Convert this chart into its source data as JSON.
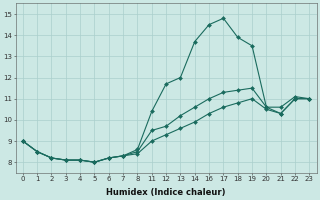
{
  "xlabel": "Humidex (Indice chaleur)",
  "bg_color": "#cce8e4",
  "grid_color": "#aacfcc",
  "line_color": "#1a6b5e",
  "line_width": 0.8,
  "marker": "D",
  "marker_size": 2.0,
  "xtick_labels": [
    "0",
    "1",
    "2",
    "3",
    "4",
    "5",
    "6",
    "7",
    "8",
    "11",
    "12",
    "13",
    "14",
    "16",
    "17",
    "18",
    "19",
    "20",
    "21",
    "22",
    "23"
  ],
  "series1_y": [
    9.0,
    8.5,
    8.2,
    8.1,
    8.1,
    8.0,
    8.2,
    8.3,
    8.6,
    10.4,
    11.7,
    12.0,
    13.7,
    14.5,
    14.8,
    13.9,
    13.5,
    10.6,
    10.6,
    11.1,
    11.0
  ],
  "series2_y": [
    9.0,
    8.5,
    8.2,
    8.1,
    8.1,
    8.0,
    8.2,
    8.3,
    8.5,
    9.5,
    9.7,
    10.2,
    10.6,
    11.0,
    11.3,
    11.4,
    11.5,
    10.6,
    10.3,
    11.0,
    11.0
  ],
  "series3_y": [
    9.0,
    8.5,
    8.2,
    8.1,
    8.1,
    8.0,
    8.2,
    8.3,
    8.4,
    9.0,
    9.3,
    9.6,
    9.9,
    10.3,
    10.6,
    10.8,
    11.0,
    10.5,
    10.3,
    11.0,
    11.0
  ],
  "ylim": [
    7.5,
    15.5
  ],
  "yticks": [
    8,
    9,
    10,
    11,
    12,
    13,
    14,
    15
  ],
  "tick_fontsize": 5.0,
  "xlabel_fontsize": 6.0
}
